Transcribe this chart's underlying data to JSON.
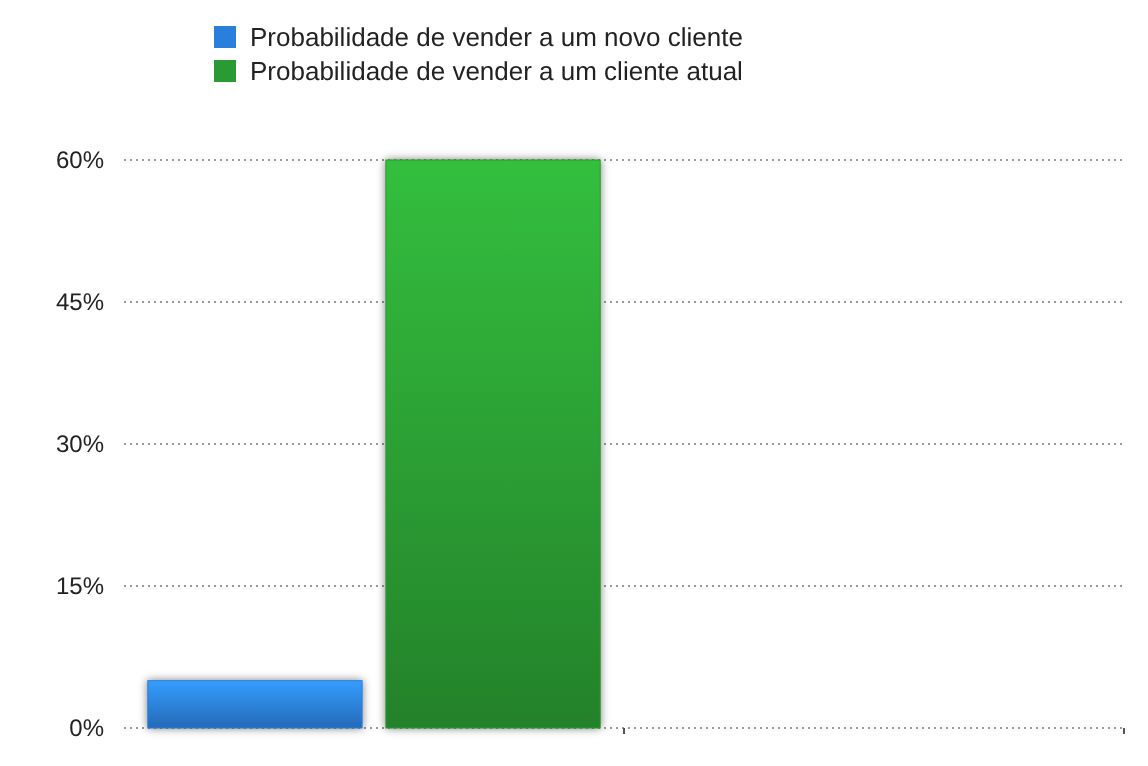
{
  "chart_data": {
    "type": "bar",
    "categories": [
      null,
      null
    ],
    "series": [
      {
        "name": "Probabilidade de vender a um novo cliente",
        "color": "#2b7fdc",
        "values": [
          5,
          null
        ]
      },
      {
        "name": "Probabilidade de vender a um cliente atual",
        "color": "#2a9a32",
        "values": [
          60,
          null
        ]
      }
    ],
    "ylim": [
      0,
      60
    ],
    "yticks": [
      {
        "value": 0,
        "label": "0%"
      },
      {
        "value": 15,
        "label": "15%"
      },
      {
        "value": 30,
        "label": "30%"
      },
      {
        "value": 45,
        "label": "45%"
      },
      {
        "value": 60,
        "label": "60%"
      }
    ],
    "grid": "y",
    "legend": "top"
  }
}
